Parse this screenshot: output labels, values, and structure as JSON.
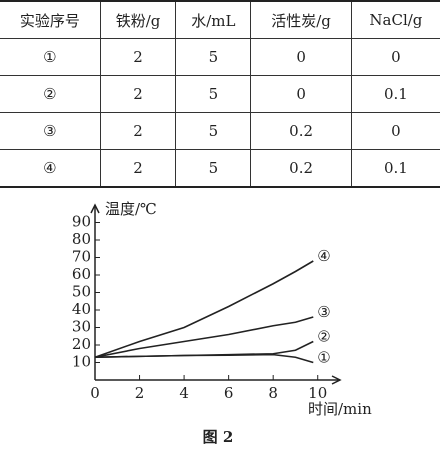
{
  "table": {
    "header": [
      "实验序号",
      "铁粉/g",
      "水/mL",
      "活性炭/g",
      "NaCl/g"
    ],
    "rows": [
      [
        "①",
        "2",
        "5",
        "0",
        "0"
      ],
      [
        "②",
        "2",
        "5",
        "0",
        "0.1"
      ],
      [
        "③",
        "2",
        "5",
        "0.2",
        "0"
      ],
      [
        "④",
        "2",
        "5",
        "0.2",
        "0.1"
      ]
    ]
  },
  "chart_data": {
    "type": "line",
    "ylabel": "温度/℃",
    "xlabel": "时间/min",
    "caption": "图 2",
    "x": [
      0,
      2,
      4,
      6,
      8,
      9,
      9.8
    ],
    "series": [
      {
        "name": "④",
        "color": "#222",
        "values": [
          13,
          22,
          30,
          42,
          55,
          62,
          68
        ]
      },
      {
        "name": "③",
        "color": "#222",
        "values": [
          13,
          18,
          22,
          26,
          31,
          33,
          36
        ]
      },
      {
        "name": "②",
        "color": "#222",
        "values": [
          13,
          13.5,
          14,
          14.5,
          15,
          17,
          22
        ]
      },
      {
        "name": "①",
        "color": "#222",
        "values": [
          13,
          13.5,
          14,
          14.2,
          14.5,
          13,
          10
        ]
      }
    ],
    "xlim": [
      0,
      11
    ],
    "ylim": [
      0,
      100
    ],
    "xticks": [
      0,
      2,
      4,
      6,
      8,
      10
    ],
    "yticks": [
      10,
      20,
      30,
      40,
      50,
      60,
      70,
      80,
      90
    ]
  }
}
